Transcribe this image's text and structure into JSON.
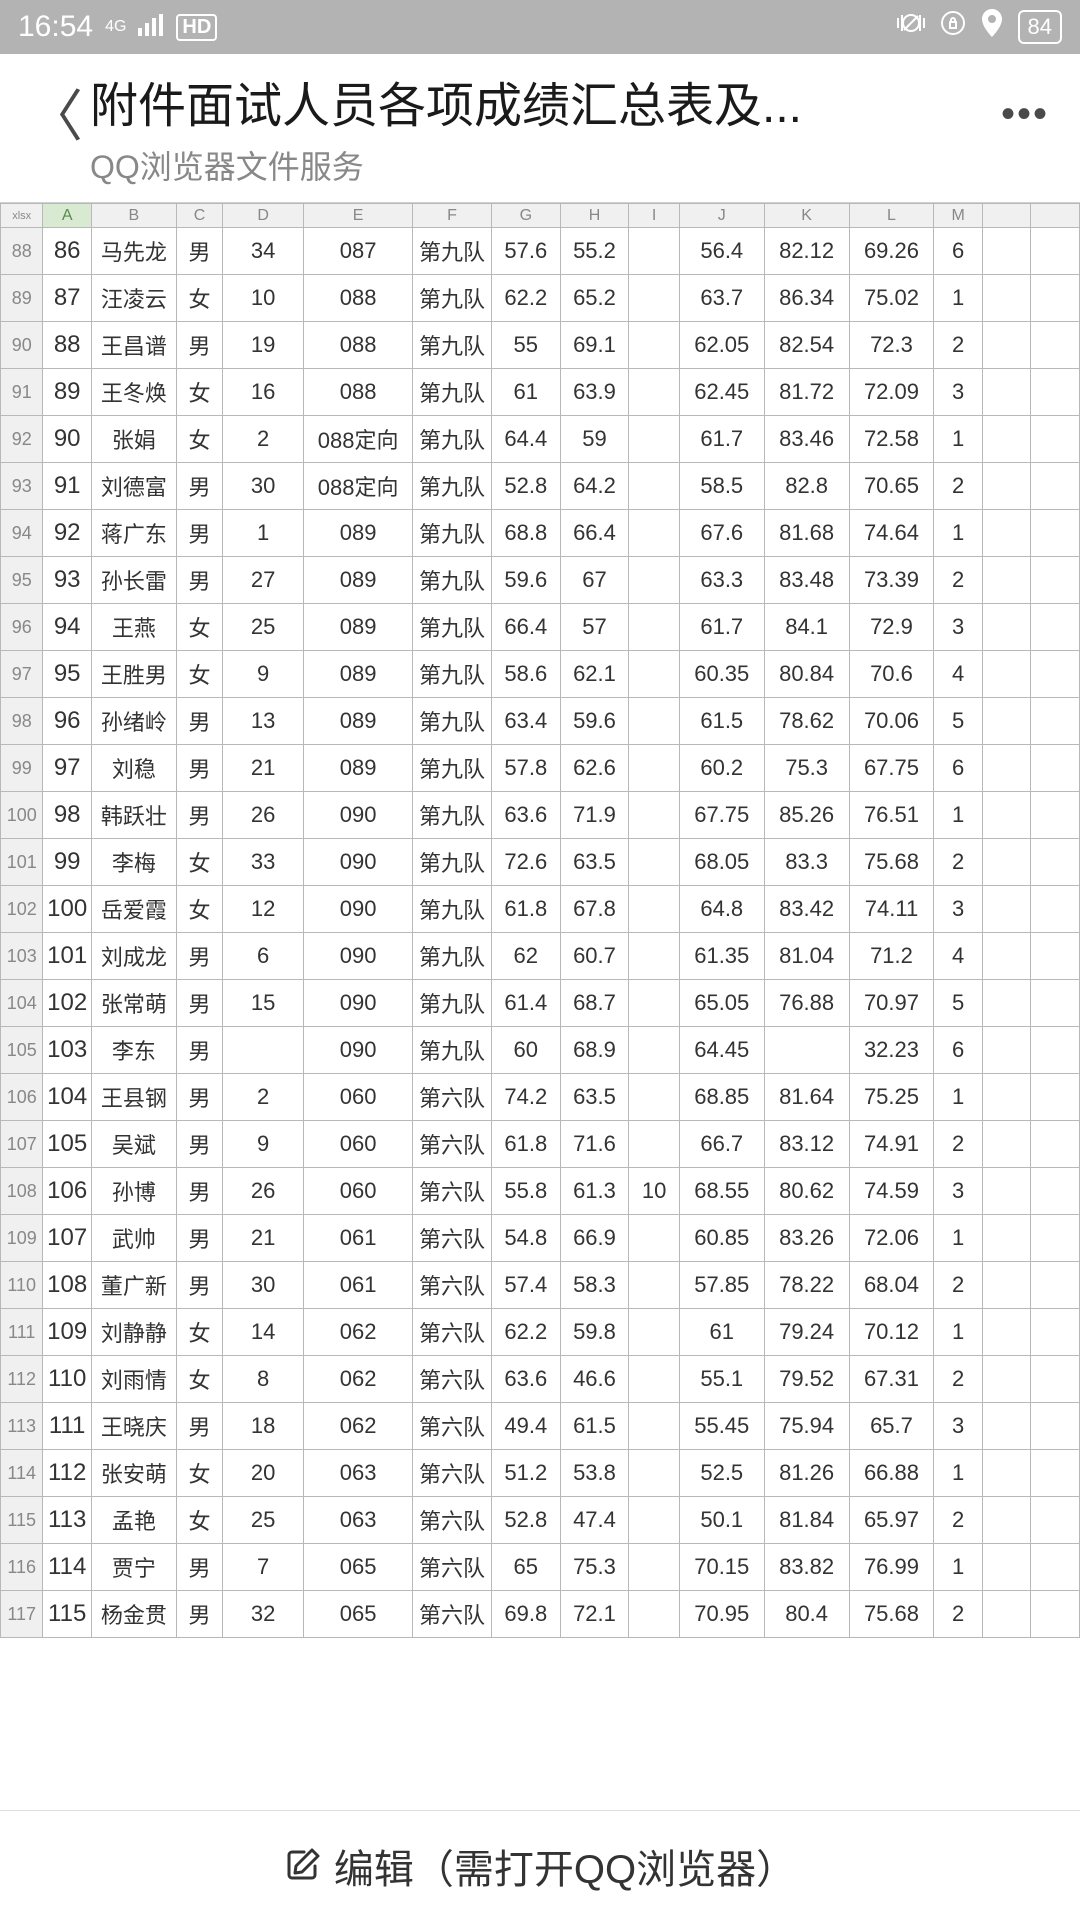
{
  "status": {
    "time": "16:54",
    "sig4g": "4G",
    "hd": "HD",
    "battery": "84"
  },
  "header": {
    "title": "附件面试人员各项成绩汇总表及...",
    "subtitle": "QQ浏览器文件服务"
  },
  "footer": {
    "label": "编辑（需打开QQ浏览器）"
  },
  "sheet": {
    "corner": "xlsx",
    "cols": [
      "A",
      "B",
      "C",
      "D",
      "E",
      "F",
      "G",
      "H",
      "I",
      "J",
      "K",
      "L",
      "M",
      "",
      ""
    ],
    "selectedCol": 0,
    "startRow": 88,
    "rows": [
      [
        "86",
        "马先龙",
        "男",
        "34",
        "087",
        "第九队",
        "57.6",
        "55.2",
        "",
        "56.4",
        "82.12",
        "69.26",
        "6",
        "",
        ""
      ],
      [
        "87",
        "汪凌云",
        "女",
        "10",
        "088",
        "第九队",
        "62.2",
        "65.2",
        "",
        "63.7",
        "86.34",
        "75.02",
        "1",
        "",
        ""
      ],
      [
        "88",
        "王昌谱",
        "男",
        "19",
        "088",
        "第九队",
        "55",
        "69.1",
        "",
        "62.05",
        "82.54",
        "72.3",
        "2",
        "",
        ""
      ],
      [
        "89",
        "王冬焕",
        "女",
        "16",
        "088",
        "第九队",
        "61",
        "63.9",
        "",
        "62.45",
        "81.72",
        "72.09",
        "3",
        "",
        ""
      ],
      [
        "90",
        "张娟",
        "女",
        "2",
        "088定向",
        "第九队",
        "64.4",
        "59",
        "",
        "61.7",
        "83.46",
        "72.58",
        "1",
        "",
        ""
      ],
      [
        "91",
        "刘德富",
        "男",
        "30",
        "088定向",
        "第九队",
        "52.8",
        "64.2",
        "",
        "58.5",
        "82.8",
        "70.65",
        "2",
        "",
        ""
      ],
      [
        "92",
        "蒋广东",
        "男",
        "1",
        "089",
        "第九队",
        "68.8",
        "66.4",
        "",
        "67.6",
        "81.68",
        "74.64",
        "1",
        "",
        ""
      ],
      [
        "93",
        "孙长雷",
        "男",
        "27",
        "089",
        "第九队",
        "59.6",
        "67",
        "",
        "63.3",
        "83.48",
        "73.39",
        "2",
        "",
        ""
      ],
      [
        "94",
        "王燕",
        "女",
        "25",
        "089",
        "第九队",
        "66.4",
        "57",
        "",
        "61.7",
        "84.1",
        "72.9",
        "3",
        "",
        ""
      ],
      [
        "95",
        "王胜男",
        "女",
        "9",
        "089",
        "第九队",
        "58.6",
        "62.1",
        "",
        "60.35",
        "80.84",
        "70.6",
        "4",
        "",
        ""
      ],
      [
        "96",
        "孙绪岭",
        "男",
        "13",
        "089",
        "第九队",
        "63.4",
        "59.6",
        "",
        "61.5",
        "78.62",
        "70.06",
        "5",
        "",
        ""
      ],
      [
        "97",
        "刘稳",
        "男",
        "21",
        "089",
        "第九队",
        "57.8",
        "62.6",
        "",
        "60.2",
        "75.3",
        "67.75",
        "6",
        "",
        ""
      ],
      [
        "98",
        "韩跃壮",
        "男",
        "26",
        "090",
        "第九队",
        "63.6",
        "71.9",
        "",
        "67.75",
        "85.26",
        "76.51",
        "1",
        "",
        ""
      ],
      [
        "99",
        "李梅",
        "女",
        "33",
        "090",
        "第九队",
        "72.6",
        "63.5",
        "",
        "68.05",
        "83.3",
        "75.68",
        "2",
        "",
        ""
      ],
      [
        "100",
        "岳爱霞",
        "女",
        "12",
        "090",
        "第九队",
        "61.8",
        "67.8",
        "",
        "64.8",
        "83.42",
        "74.11",
        "3",
        "",
        ""
      ],
      [
        "101",
        "刘成龙",
        "男",
        "6",
        "090",
        "第九队",
        "62",
        "60.7",
        "",
        "61.35",
        "81.04",
        "71.2",
        "4",
        "",
        ""
      ],
      [
        "102",
        "张常萌",
        "男",
        "15",
        "090",
        "第九队",
        "61.4",
        "68.7",
        "",
        "65.05",
        "76.88",
        "70.97",
        "5",
        "",
        ""
      ],
      [
        "103",
        "李东",
        "男",
        "",
        "090",
        "第九队",
        "60",
        "68.9",
        "",
        "64.45",
        "",
        "32.23",
        "6",
        "",
        ""
      ],
      [
        "104",
        "王县钢",
        "男",
        "2",
        "060",
        "第六队",
        "74.2",
        "63.5",
        "",
        "68.85",
        "81.64",
        "75.25",
        "1",
        "",
        ""
      ],
      [
        "105",
        "吴斌",
        "男",
        "9",
        "060",
        "第六队",
        "61.8",
        "71.6",
        "",
        "66.7",
        "83.12",
        "74.91",
        "2",
        "",
        ""
      ],
      [
        "106",
        "孙博",
        "男",
        "26",
        "060",
        "第六队",
        "55.8",
        "61.3",
        "10",
        "68.55",
        "80.62",
        "74.59",
        "3",
        "",
        ""
      ],
      [
        "107",
        "武帅",
        "男",
        "21",
        "061",
        "第六队",
        "54.8",
        "66.9",
        "",
        "60.85",
        "83.26",
        "72.06",
        "1",
        "",
        ""
      ],
      [
        "108",
        "董广新",
        "男",
        "30",
        "061",
        "第六队",
        "57.4",
        "58.3",
        "",
        "57.85",
        "78.22",
        "68.04",
        "2",
        "",
        ""
      ],
      [
        "109",
        "刘静静",
        "女",
        "14",
        "062",
        "第六队",
        "62.2",
        "59.8",
        "",
        "61",
        "79.24",
        "70.12",
        "1",
        "",
        ""
      ],
      [
        "110",
        "刘雨情",
        "女",
        "8",
        "062",
        "第六队",
        "63.6",
        "46.6",
        "",
        "55.1",
        "79.52",
        "67.31",
        "2",
        "",
        ""
      ],
      [
        "111",
        "王晓庆",
        "男",
        "18",
        "062",
        "第六队",
        "49.4",
        "61.5",
        "",
        "55.45",
        "75.94",
        "65.7",
        "3",
        "",
        ""
      ],
      [
        "112",
        "张安萌",
        "女",
        "20",
        "063",
        "第六队",
        "51.2",
        "53.8",
        "",
        "52.5",
        "81.26",
        "66.88",
        "1",
        "",
        ""
      ],
      [
        "113",
        "孟艳",
        "女",
        "25",
        "063",
        "第六队",
        "52.8",
        "47.4",
        "",
        "50.1",
        "81.84",
        "65.97",
        "2",
        "",
        ""
      ],
      [
        "114",
        "贾宁",
        "男",
        "7",
        "065",
        "第六队",
        "65",
        "75.3",
        "",
        "70.15",
        "83.82",
        "76.99",
        "1",
        "",
        ""
      ],
      [
        "115",
        "杨金贯",
        "男",
        "32",
        "065",
        "第六队",
        "69.8",
        "72.1",
        "",
        "70.95",
        "80.4",
        "75.68",
        "2",
        "",
        ""
      ]
    ]
  }
}
